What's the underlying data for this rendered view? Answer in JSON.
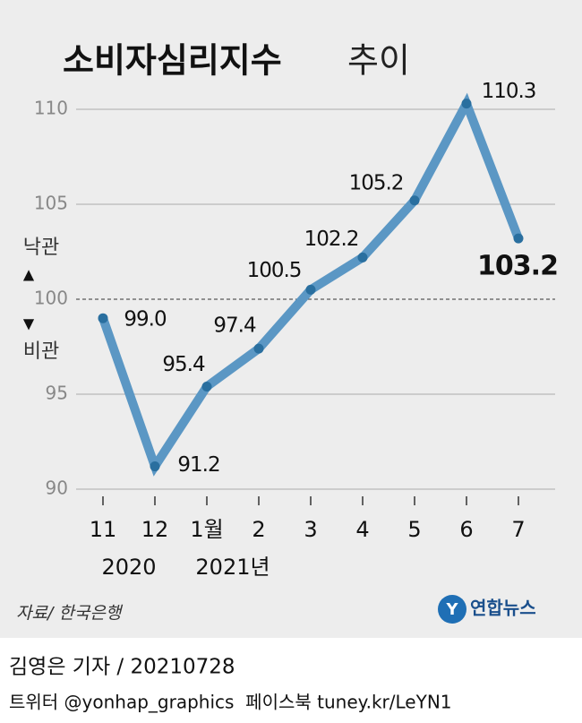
{
  "chart_data": {
    "type": "line",
    "title": "소비자심리지수",
    "title_suffix": "추이",
    "categories": [
      "11",
      "12",
      "1월",
      "2",
      "3",
      "4",
      "5",
      "6",
      "7"
    ],
    "year_labels": [
      "2020",
      "2021년"
    ],
    "values": [
      99.0,
      91.2,
      95.4,
      97.4,
      100.5,
      102.2,
      105.2,
      110.3,
      103.2
    ],
    "value_labels": [
      "99.0",
      "91.2",
      "95.4",
      "97.4",
      "100.5",
      "102.2",
      "105.2",
      "110.3",
      "103.2"
    ],
    "color": "#5b97c4",
    "ylim": [
      90,
      110
    ],
    "yticks": [
      90,
      95,
      100,
      105,
      110
    ],
    "grid": true,
    "reference_line": 100,
    "annotations": {
      "optimistic": "낙관",
      "pessimistic": "비관"
    },
    "source": "자료/ 한국은행",
    "logo": "연합뉴스"
  },
  "footer": {
    "byline": "김영은 기자 / 20210728",
    "social": "트위터 @yonhap_graphics  페이스북 tuney.kr/LeYN1"
  }
}
